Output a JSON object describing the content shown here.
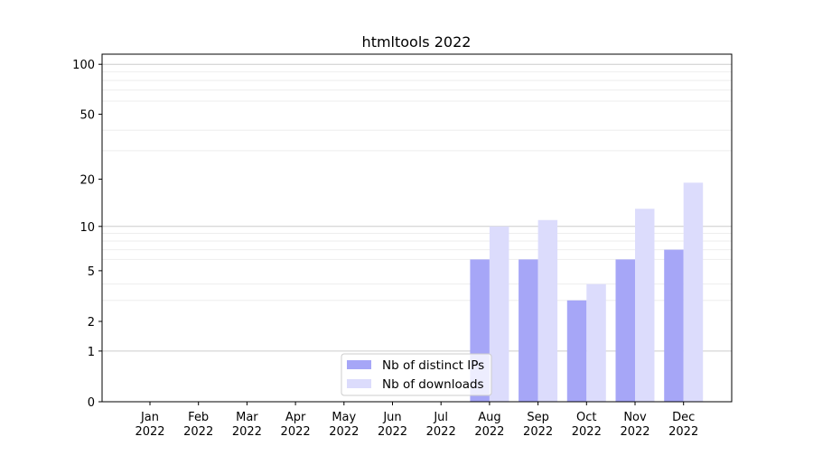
{
  "chart_data": {
    "type": "bar",
    "title": "htmltools 2022",
    "xlabel": "",
    "ylabel": "",
    "yscale": "log(1+y)",
    "ylim": [
      0,
      115
    ],
    "yticks": [
      0,
      1,
      2,
      5,
      10,
      20,
      50,
      100
    ],
    "minor_grid": [
      3,
      4,
      6,
      7,
      8,
      9,
      30,
      40,
      60,
      70,
      80,
      90
    ],
    "major_grid": [
      1,
      10,
      100
    ],
    "grid": true,
    "legend_placement": "lower-center",
    "categories": [
      "Jan\n2022",
      "Feb\n2022",
      "Mar\n2022",
      "Apr\n2022",
      "May\n2022",
      "Jun\n2022",
      "Jul\n2022",
      "Aug\n2022",
      "Sep\n2022",
      "Oct\n2022",
      "Nov\n2022",
      "Dec\n2022"
    ],
    "series": [
      {
        "name": "Nb of distinct IPs",
        "color": "#a6a6f7",
        "values": [
          0,
          0,
          0,
          0,
          0,
          0,
          0,
          6,
          6,
          3,
          6,
          7
        ]
      },
      {
        "name": "Nb of downloads",
        "color": "#dcdcfc",
        "values": [
          0,
          0,
          0,
          0,
          0,
          0,
          0,
          10,
          11,
          4,
          13,
          19
        ]
      }
    ]
  }
}
